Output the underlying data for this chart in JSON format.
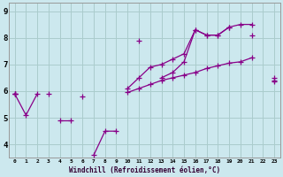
{
  "xlabel": "Windchill (Refroidissement éolien,°C)",
  "xlim": [
    -0.5,
    23.5
  ],
  "ylim": [
    3.5,
    9.3
  ],
  "bg_color": "#cce8ee",
  "line_color": "#880088",
  "grid_color": "#aacccc",
  "lines": [
    [
      5.9,
      5.1,
      5.9,
      null,
      4.9,
      4.9,
      null,
      3.6,
      4.5,
      4.5,
      null,
      7.9,
      null,
      6.5,
      6.7,
      7.1,
      8.3,
      8.1,
      8.1,
      8.4,
      null,
      8.1,
      null,
      6.5
    ],
    [
      5.9,
      null,
      null,
      5.9,
      null,
      null,
      5.8,
      null,
      null,
      null,
      null,
      null,
      null,
      null,
      null,
      null,
      null,
      null,
      null,
      null,
      null,
      null,
      null,
      null
    ],
    [
      5.9,
      null,
      null,
      null,
      null,
      null,
      null,
      null,
      null,
      null,
      6.1,
      6.5,
      6.9,
      7.0,
      7.2,
      7.4,
      8.3,
      8.1,
      8.1,
      8.4,
      8.5,
      8.5,
      null,
      6.4
    ],
    [
      5.9,
      null,
      null,
      null,
      null,
      null,
      null,
      null,
      null,
      null,
      5.95,
      6.1,
      6.25,
      6.4,
      6.5,
      6.6,
      6.7,
      6.85,
      6.95,
      7.05,
      7.1,
      7.25,
      null,
      6.35
    ]
  ],
  "xtick_labels": [
    "0",
    "1",
    "2",
    "3",
    "4",
    "5",
    "6",
    "7",
    "8",
    "9",
    "10",
    "11",
    "12",
    "13",
    "14",
    "15",
    "16",
    "17",
    "18",
    "19",
    "20",
    "21",
    "22",
    "23"
  ],
  "ytick_values": [
    4,
    5,
    6,
    7,
    8,
    9
  ],
  "ytick_labels": [
    "4",
    "5",
    "6",
    "7",
    "8",
    "9"
  ],
  "marker": "+",
  "markersize": 4,
  "linewidth": 0.9
}
